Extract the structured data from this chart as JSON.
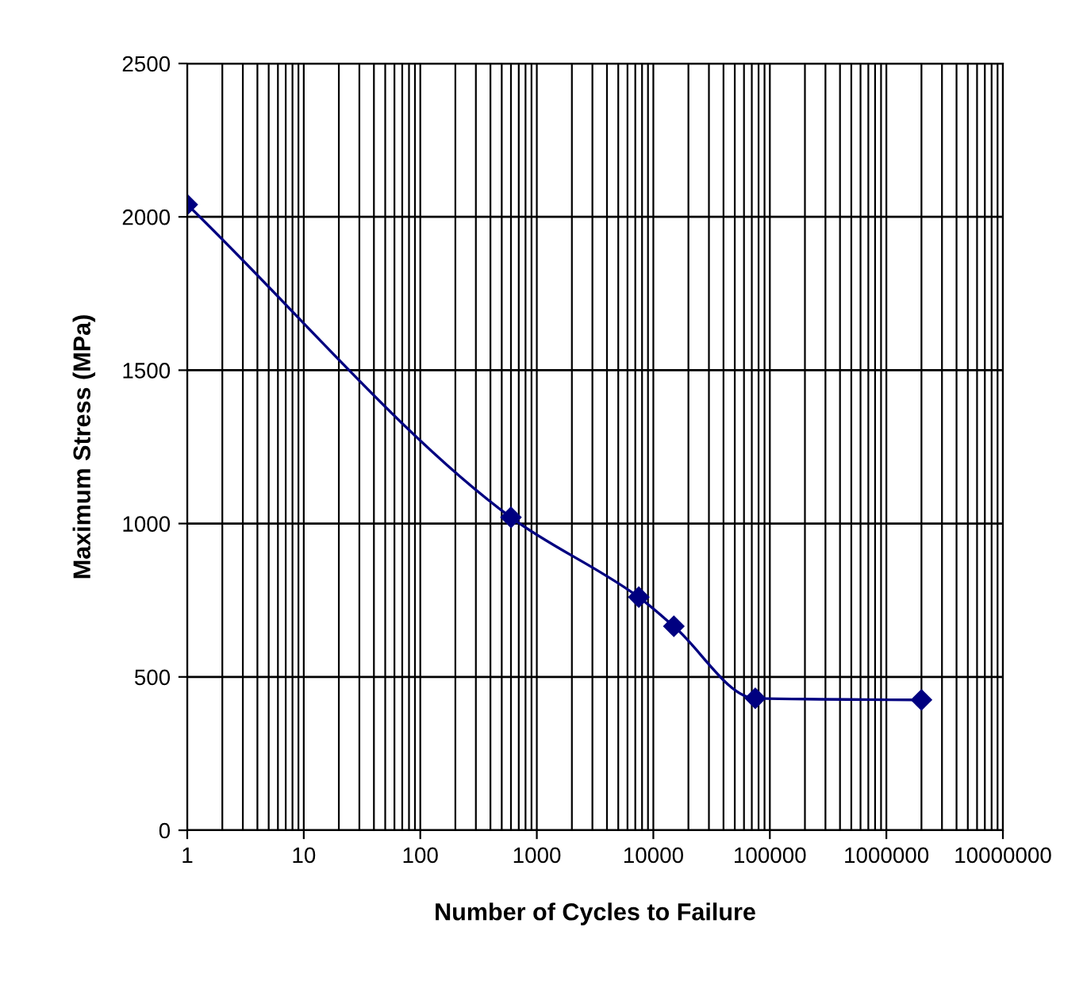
{
  "chart_data": {
    "type": "line",
    "xlabel": "Number of Cycles to Failure",
    "ylabel": "Maximum Stress (MPa)",
    "log": "x",
    "x": [
      1,
      600,
      7500,
      15000,
      75000,
      2000000
    ],
    "series": [
      {
        "color": "#000080",
        "values": [
          2040,
          1020,
          760,
          665,
          430,
          425
        ]
      }
    ],
    "xlim": [
      1,
      10000000
    ],
    "xticks": [
      {
        "value": 1,
        "label": "1"
      },
      {
        "value": 10,
        "label": "10"
      },
      {
        "value": 100,
        "label": "100"
      },
      {
        "value": 1000,
        "label": "1000"
      },
      {
        "value": 10000,
        "label": "10000"
      },
      {
        "value": 100000,
        "label": "100000"
      },
      {
        "value": 1000000,
        "label": "1000000"
      },
      {
        "value": 10000000,
        "label": "10000000"
      }
    ],
    "ylim": [
      0,
      2500
    ],
    "yticks": [
      0,
      500,
      1000,
      1500,
      2000,
      2500
    ],
    "grid": true,
    "marker": "diamond",
    "line_style": "solid",
    "legend": false
  }
}
